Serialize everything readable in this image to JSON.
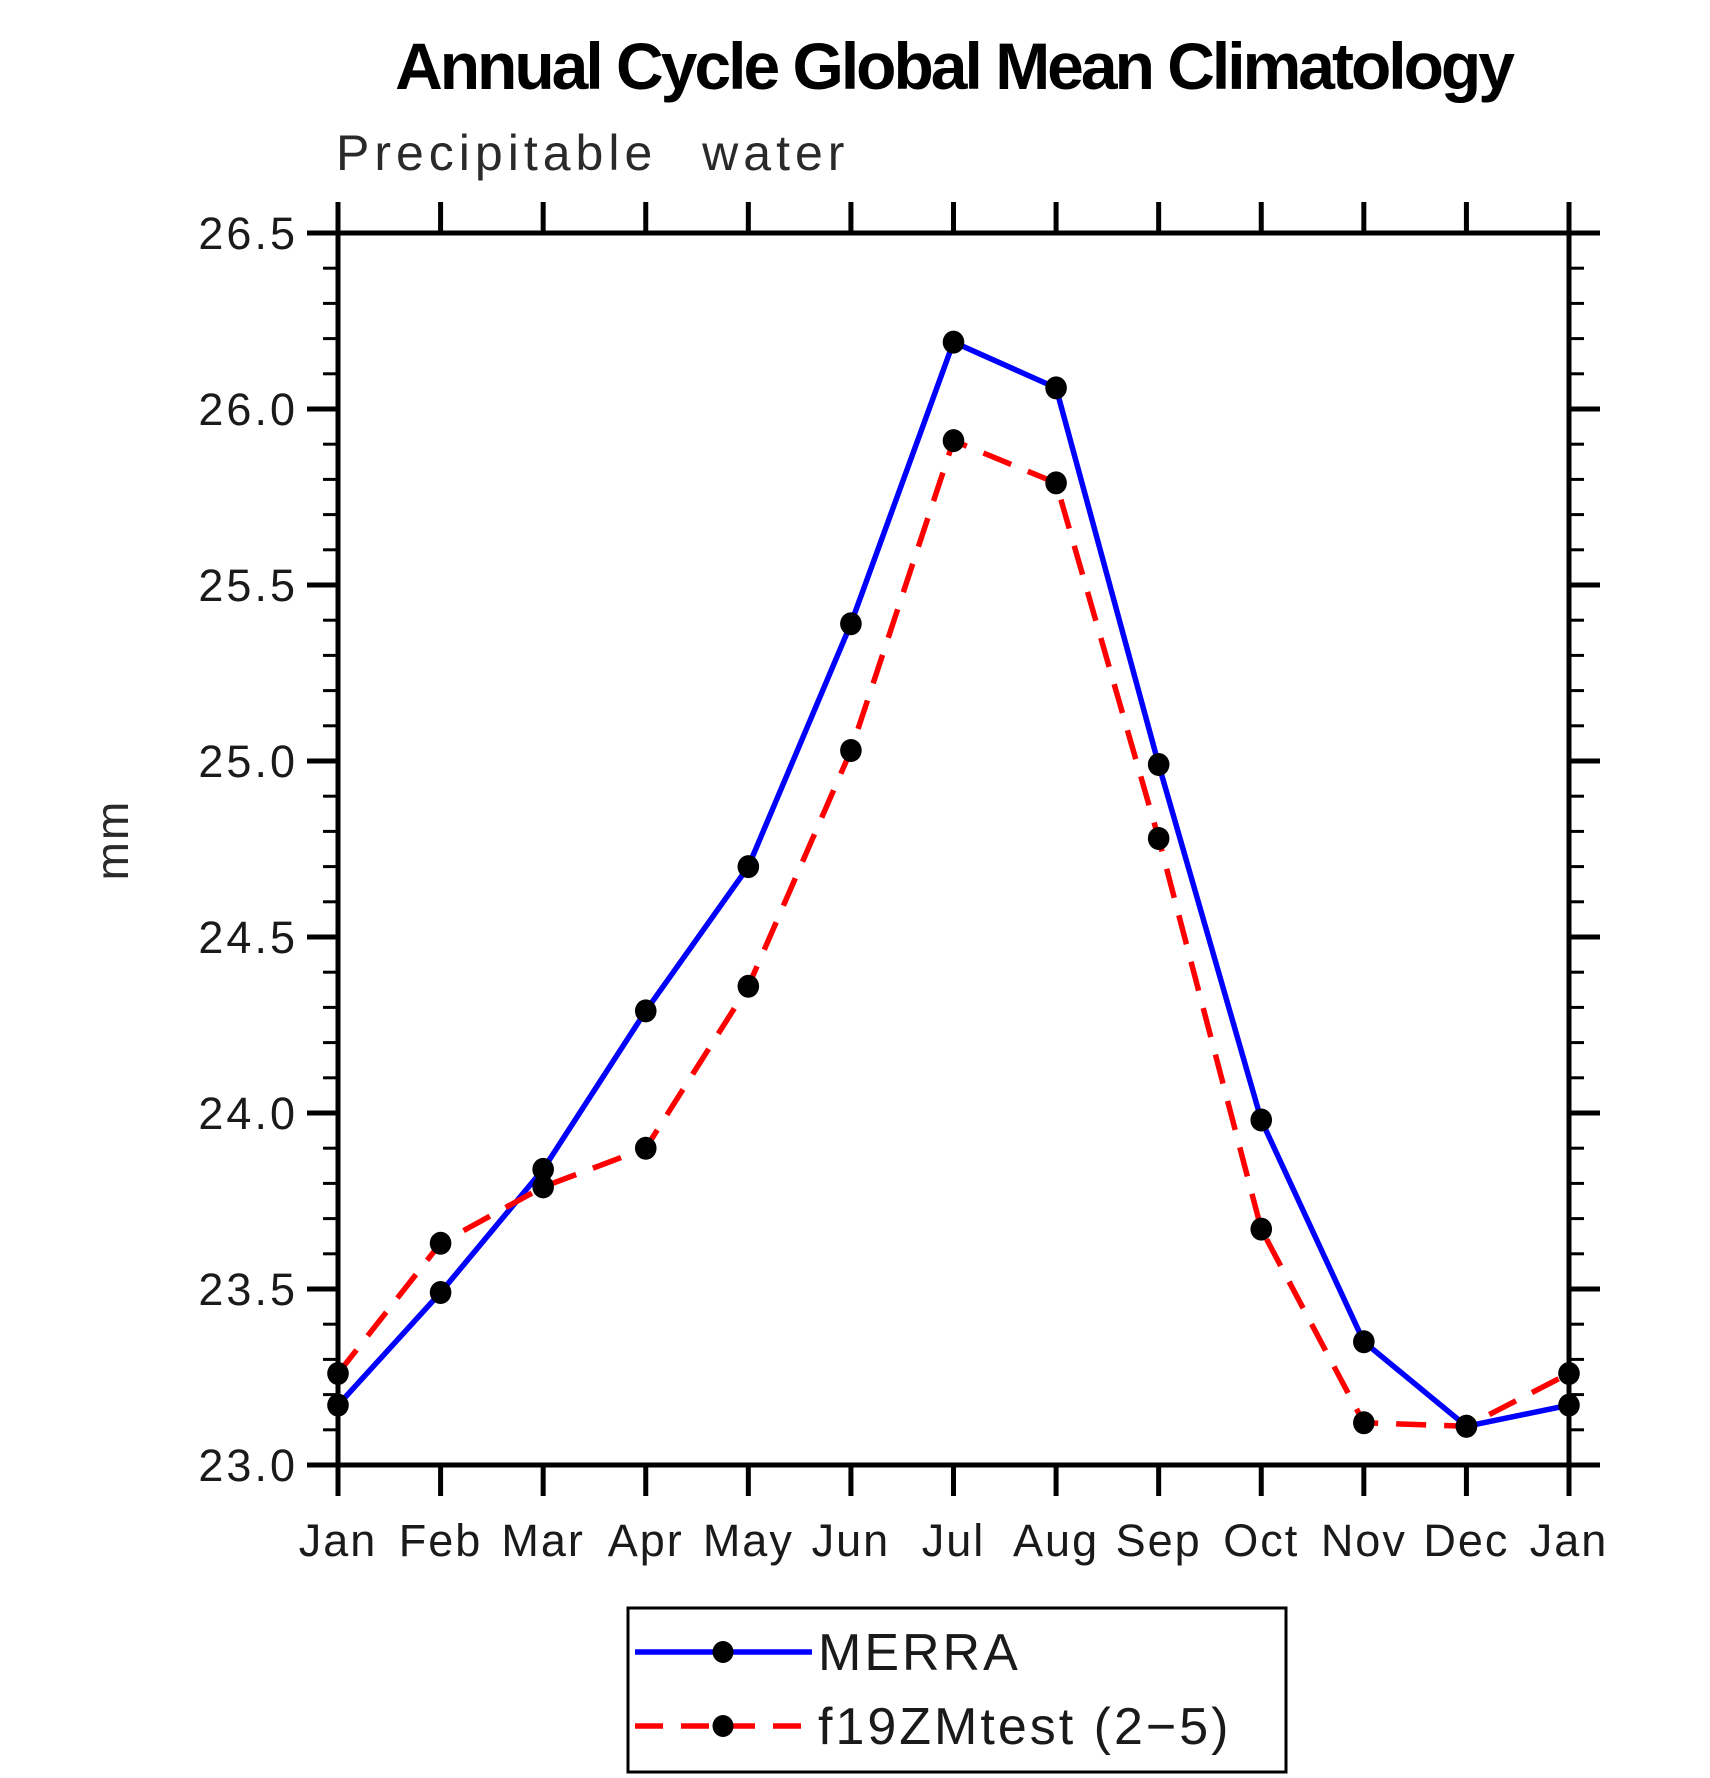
{
  "figure": {
    "background": "#ffffff",
    "axis_color": "#000000",
    "text_color": "#1a1a1a",
    "marker_color": "#000000"
  },
  "chart_data": {
    "type": "line",
    "title": "Annual Cycle Global Mean Climatology",
    "subtitle": "Precipitable water",
    "ylabel": "mm",
    "xlabel": "",
    "x_categories": [
      "Jan",
      "Feb",
      "Mar",
      "Apr",
      "May",
      "Jun",
      "Jul",
      "Aug",
      "Sep",
      "Oct",
      "Nov",
      "Dec",
      "Jan"
    ],
    "ylim": [
      23.0,
      26.5
    ],
    "ytick_major_step": 0.5,
    "ytick_minor_step": 0.1,
    "ytick_labels": [
      "23.0",
      "23.5",
      "24.0",
      "24.5",
      "25.0",
      "25.5",
      "26.0",
      "26.5"
    ],
    "grid": false,
    "legend_position": "bottom-center",
    "series": [
      {
        "name": "MERRA",
        "color": "#0000ff",
        "line_style": "solid",
        "marker": "filled-circle",
        "marker_color": "#000000",
        "values": [
          23.17,
          23.49,
          23.84,
          24.29,
          24.7,
          25.39,
          26.19,
          26.06,
          24.99,
          23.98,
          23.35,
          23.11,
          23.17
        ]
      },
      {
        "name": "f19ZMtest (2−5)",
        "color": "#ff0000",
        "line_style": "dashed",
        "marker": "filled-circle",
        "marker_color": "#000000",
        "values": [
          23.26,
          23.63,
          23.79,
          23.9,
          24.36,
          25.03,
          25.91,
          25.79,
          24.78,
          23.67,
          23.12,
          23.11,
          23.26
        ]
      }
    ]
  }
}
